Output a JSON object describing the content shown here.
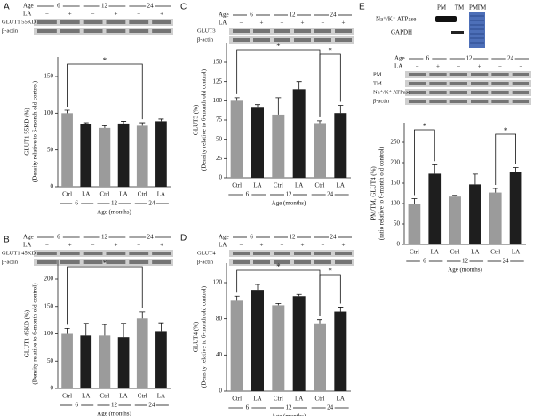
{
  "chart_data": [
    {
      "panel": "A",
      "type": "bar",
      "ylabel": "GLUT1 55KD (%)",
      "ylabel_note": "(Density relative to 6-month old control)",
      "categories": [
        "Ctrl",
        "LA",
        "Ctrl",
        "LA",
        "Ctrl",
        "LA"
      ],
      "groups": [
        "6",
        "12",
        "24"
      ],
      "xlabel": "Age (months)",
      "values": [
        100,
        85,
        80,
        86,
        83,
        89
      ],
      "errors": [
        4,
        2,
        3,
        3,
        4,
        3
      ],
      "colors": [
        "#9b9b9b",
        "#1e1e1e"
      ],
      "ylim": [
        0,
        150
      ],
      "yticks": [
        0,
        50,
        100,
        150
      ],
      "annotations": [
        {
          "from": 0,
          "to": 4,
          "label": "*"
        }
      ],
      "blot": {
        "age_label": "Age",
        "treatment_label": "LA",
        "signs": [
          "−",
          "+",
          "−",
          "+",
          "−",
          "+"
        ],
        "bands": [
          "GLUT1 55KD",
          "β-actin"
        ]
      }
    },
    {
      "panel": "B",
      "type": "bar",
      "ylabel": "GLUT1 45KD (%)",
      "ylabel_note": "(Density relative to 6-month old control)",
      "categories": [
        "Ctrl",
        "LA",
        "Ctrl",
        "LA",
        "Ctrl",
        "LA"
      ],
      "groups": [
        "6",
        "12",
        "24"
      ],
      "xlabel": "Age (months)",
      "values": [
        100,
        97,
        97,
        94,
        128,
        105
      ],
      "errors": [
        10,
        22,
        20,
        25,
        12,
        15
      ],
      "colors": [
        "#9b9b9b",
        "#1e1e1e"
      ],
      "ylim": [
        0,
        200
      ],
      "yticks": [
        0,
        50,
        100,
        150,
        200
      ],
      "annotations": [
        {
          "from": 0,
          "to": 4,
          "label": "*"
        }
      ],
      "blot": {
        "age_label": "Age",
        "treatment_label": "LA",
        "signs": [
          "−",
          "+",
          "−",
          "+",
          "−",
          "+"
        ],
        "bands": [
          "GLUT1 45KD",
          "β-actin"
        ]
      }
    },
    {
      "panel": "C",
      "type": "bar",
      "ylabel": "GLUT3 (%)",
      "ylabel_note": "(Density relative to 6-month old control)",
      "categories": [
        "Ctrl",
        "LA",
        "Ctrl",
        "LA",
        "Ctrl",
        "LA"
      ],
      "groups": [
        "6",
        "12",
        "24"
      ],
      "xlabel": "Age (months)",
      "values": [
        100,
        92,
        82,
        115,
        71,
        84
      ],
      "errors": [
        4,
        3,
        22,
        10,
        3,
        10
      ],
      "colors": [
        "#9b9b9b",
        "#1e1e1e"
      ],
      "ylim": [
        0,
        150
      ],
      "yticks": [
        0,
        25,
        50,
        75,
        100,
        125,
        150
      ],
      "annotations": [
        {
          "from": 0,
          "to": 4,
          "label": "*"
        },
        {
          "from": 4,
          "to": 5,
          "label": "*"
        }
      ],
      "blot": {
        "age_label": "Age",
        "treatment_label": "LA",
        "signs": [
          "−",
          "+",
          "−",
          "+",
          "−",
          "+"
        ],
        "bands": [
          "GLUT3",
          "β-actin"
        ]
      }
    },
    {
      "panel": "D",
      "type": "bar",
      "ylabel": "GLUT4 (%)",
      "ylabel_note": "(Density relative to 6-month old control)",
      "categories": [
        "Ctrl",
        "LA",
        "Ctrl",
        "LA",
        "Ctrl",
        "LA"
      ],
      "groups": [
        "6",
        "12",
        "24"
      ],
      "xlabel": "Age (months)",
      "values": [
        100,
        112,
        95,
        105,
        75,
        88
      ],
      "errors": [
        5,
        6,
        2,
        2,
        4,
        5
      ],
      "colors": [
        "#9b9b9b",
        "#1e1e1e"
      ],
      "ylim": [
        0,
        120
      ],
      "yticks": [
        0,
        40,
        80,
        120
      ],
      "annotations": [
        {
          "from": 0,
          "to": 4,
          "label": "*"
        },
        {
          "from": 4,
          "to": 5,
          "label": "*"
        }
      ],
      "blot": {
        "age_label": "Age",
        "treatment_label": "LA",
        "signs": [
          "−",
          "+",
          "−",
          "+",
          "−",
          "+"
        ],
        "bands": [
          "GLUT4",
          "β-actin"
        ]
      }
    },
    {
      "panel": "E",
      "type": "bar",
      "ylabel": "PM/TM, GLUT4 (%)",
      "ylabel_note": "(ratio relative to 6-month old control)",
      "categories": [
        "Ctrl",
        "LA",
        "Ctrl",
        "LA",
        "Ctrl",
        "LA"
      ],
      "groups": [
        "6",
        "12",
        "24"
      ],
      "xlabel": "Age (months)",
      "values": [
        100,
        173,
        117,
        147,
        127,
        178
      ],
      "errors": [
        12,
        22,
        3,
        25,
        10,
        10
      ],
      "colors": [
        "#9b9b9b",
        "#1e1e1e"
      ],
      "ylim": [
        0,
        250
      ],
      "yticks": [
        0,
        50,
        100,
        150,
        200,
        250
      ],
      "annotations": [
        {
          "from": 0,
          "to": 1,
          "label": "*"
        },
        {
          "from": 4,
          "to": 5,
          "label": "*"
        }
      ],
      "inset": {
        "lanes": [
          "PM",
          "TM"
        ],
        "bands": [
          "Na⁺/K⁺ ATPase",
          "GAPDH"
        ],
        "gel_lanes": [
          "PM",
          "TM"
        ]
      },
      "blot": {
        "age_label": "Age",
        "treatment_label": "LA",
        "signs": [
          "−",
          "+",
          "−",
          "+",
          "−",
          "+"
        ],
        "bands": [
          "PM",
          "TM",
          "Na⁺/K⁺ ATPase",
          "β-actin"
        ]
      }
    }
  ]
}
